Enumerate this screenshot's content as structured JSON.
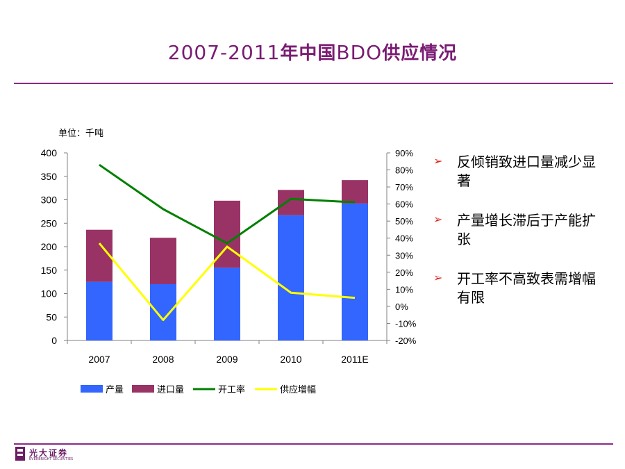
{
  "title": {
    "prefix": "2007-2011",
    "zh1": "年中国",
    "mid": "BDO",
    "zh2": "供应情况"
  },
  "chart_data": {
    "type": "bar",
    "unit_label": "单位：千吨",
    "categories": [
      "2007",
      "2008",
      "2009",
      "2010",
      "2011E"
    ],
    "series": [
      {
        "name": "产量",
        "kind": "bar-stacked",
        "axis": "left",
        "color": "#3366ff",
        "values": [
          125,
          120,
          155,
          267,
          292
        ]
      },
      {
        "name": "进口量",
        "kind": "bar-stacked",
        "axis": "left",
        "color": "#993366",
        "values": [
          111,
          99,
          143,
          54,
          50
        ]
      },
      {
        "name": "开工率",
        "kind": "line",
        "axis": "right",
        "color": "#008000",
        "values": [
          83,
          57,
          37,
          63,
          61
        ]
      },
      {
        "name": "供应增幅",
        "kind": "line",
        "axis": "right",
        "color": "#ffff00",
        "values": [
          37,
          -8,
          35,
          8,
          5
        ]
      }
    ],
    "left_axis": {
      "ylim": [
        0,
        400
      ],
      "ticks": [
        "0",
        "50",
        "100",
        "150",
        "200",
        "250",
        "300",
        "350",
        "400"
      ]
    },
    "right_axis": {
      "ylim": [
        -20,
        90
      ],
      "ticks": [
        "-20%",
        "-10%",
        "0%",
        "10%",
        "20%",
        "30%",
        "40%",
        "50%",
        "60%",
        "70%",
        "80%",
        "90%"
      ]
    },
    "legend_position": "bottom"
  },
  "bullets": [
    {
      "text": "反倾销致进口量减少显著"
    },
    {
      "text": "产量增长滞后于产能扩张"
    },
    {
      "text": "开工率不高致表需增幅有限"
    }
  ],
  "footer": {
    "logo_cn": "光大证券",
    "logo_en": "EVERBRIGHT SECURITIES"
  },
  "colors": {
    "accent": "#7a1c73",
    "arrow": "#e2231a"
  }
}
